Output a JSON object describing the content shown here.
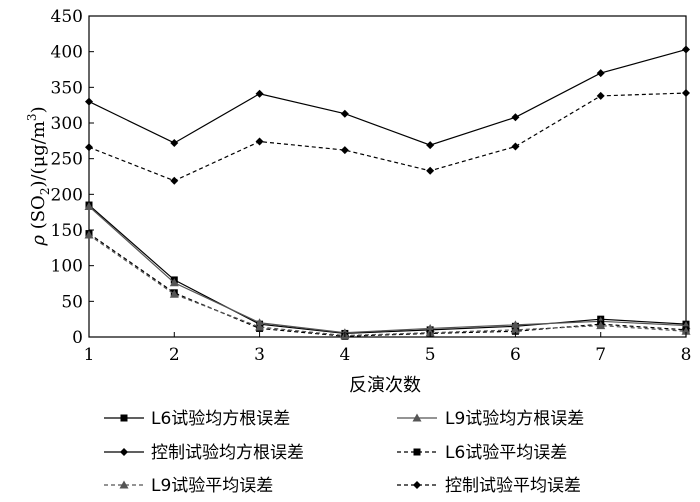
{
  "chart_data": {
    "type": "line",
    "title": "",
    "xlabel": "反演次数",
    "ylabel": {
      "rho": "ρ",
      "open": " (SO",
      "sub": "2",
      "mid": ")/(μg/m",
      "sup": "3",
      "close": ")"
    },
    "x": [
      1,
      2,
      3,
      4,
      5,
      6,
      7,
      8
    ],
    "xlim": [
      1,
      8
    ],
    "ylim": [
      0,
      450
    ],
    "xticks": [
      "1",
      "2",
      "3",
      "4",
      "5",
      "6",
      "7",
      "8"
    ],
    "yticks": [
      "0",
      "50",
      "100",
      "150",
      "200",
      "250",
      "300",
      "350",
      "400",
      "450"
    ],
    "grid": false,
    "legend_position": "bottom",
    "series": [
      {
        "name": "L6试验均方根误差",
        "values": [
          185,
          80,
          18,
          5,
          10,
          15,
          25,
          18
        ],
        "marker": "square",
        "dashed": false
      },
      {
        "name": "L9试验均方根误差",
        "values": [
          183,
          76,
          20,
          6,
          12,
          17,
          22,
          16
        ],
        "marker": "triangle",
        "dashed": false
      },
      {
        "name": "控制试验均方根误差",
        "values": [
          330,
          272,
          341,
          313,
          269,
          308,
          370,
          403
        ],
        "marker": "diamond",
        "dashed": false
      },
      {
        "name": "L6试验平均误差",
        "values": [
          145,
          62,
          12,
          1,
          5,
          8,
          18,
          10
        ],
        "marker": "square",
        "dashed": true
      },
      {
        "name": "L9试验平均误差",
        "values": [
          143,
          60,
          14,
          2,
          6,
          10,
          16,
          8
        ],
        "marker": "triangle",
        "dashed": true
      },
      {
        "name": "控制试验平均误差",
        "values": [
          266,
          219,
          274,
          262,
          233,
          267,
          338,
          342
        ],
        "marker": "diamond",
        "dashed": true
      }
    ]
  }
}
